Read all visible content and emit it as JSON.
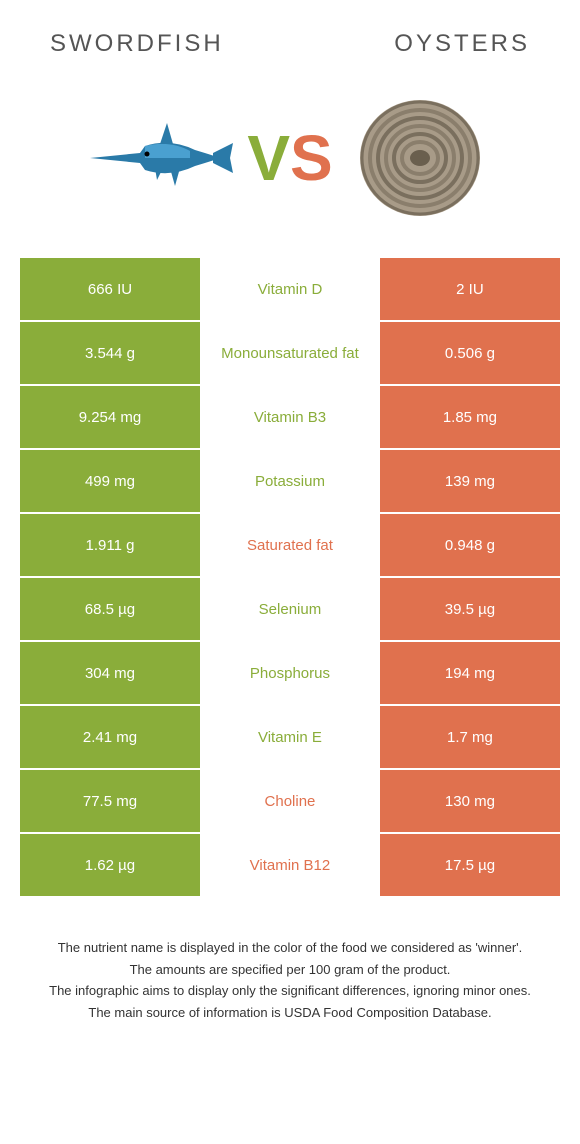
{
  "colors": {
    "left": "#8aad3a",
    "right": "#e0714e",
    "text_dark": "#555555"
  },
  "header": {
    "left_title": "Swordfish",
    "right_title": "Oysters"
  },
  "vs": {
    "v": "V",
    "s": "S"
  },
  "rows": [
    {
      "left": "666 IU",
      "label": "Vitamin D",
      "right": "2 IU",
      "winner": "left"
    },
    {
      "left": "3.544 g",
      "label": "Monounsaturated fat",
      "right": "0.506 g",
      "winner": "left"
    },
    {
      "left": "9.254 mg",
      "label": "Vitamin B3",
      "right": "1.85 mg",
      "winner": "left"
    },
    {
      "left": "499 mg",
      "label": "Potassium",
      "right": "139 mg",
      "winner": "left"
    },
    {
      "left": "1.911 g",
      "label": "Saturated fat",
      "right": "0.948 g",
      "winner": "right"
    },
    {
      "left": "68.5 µg",
      "label": "Selenium",
      "right": "39.5 µg",
      "winner": "left"
    },
    {
      "left": "304 mg",
      "label": "Phosphorus",
      "right": "194 mg",
      "winner": "left"
    },
    {
      "left": "2.41 mg",
      "label": "Vitamin E",
      "right": "1.7 mg",
      "winner": "left"
    },
    {
      "left": "77.5 mg",
      "label": "Choline",
      "right": "130 mg",
      "winner": "right"
    },
    {
      "left": "1.62 µg",
      "label": "Vitamin B12",
      "right": "17.5 µg",
      "winner": "right"
    }
  ],
  "footer": {
    "line1": "The nutrient name is displayed in the color of the food we considered as 'winner'.",
    "line2": "The amounts are specified per 100 gram of the product.",
    "line3": "The infographic aims to display only the significant differences, ignoring minor ones.",
    "line4": "The main source of information is USDA Food Composition Database."
  }
}
